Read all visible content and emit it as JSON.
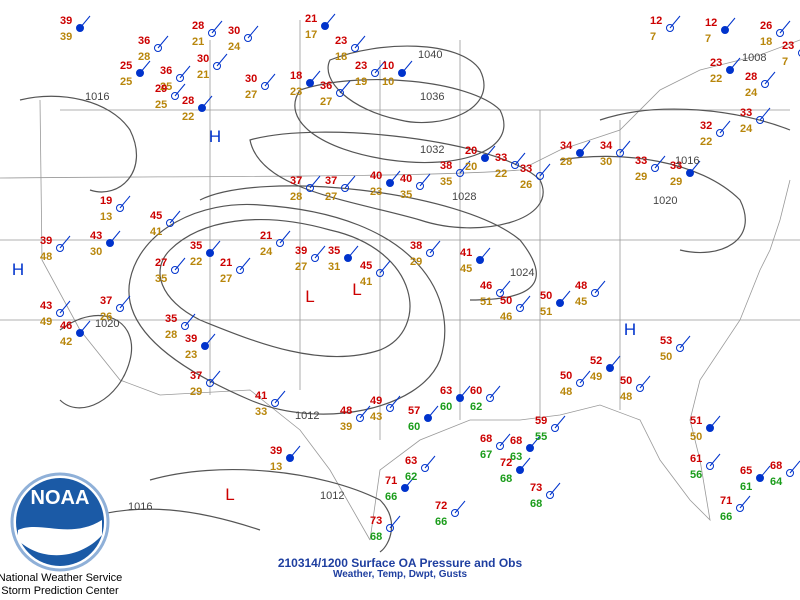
{
  "title": "210314/1200 Surface OA Pressure and Obs",
  "subtitle": "Weather, Temp, Dwpt, Gusts",
  "logo_text": "NOAA",
  "credits": [
    "National Weather Service",
    "Storm Prediction Center"
  ],
  "isobar_labels": [
    "1040",
    "1036",
    "1032",
    "1028",
    "1024",
    "1020",
    "1016",
    "1012",
    "1008",
    "1016",
    "1016",
    "1020",
    "1012"
  ],
  "centers": [
    "H",
    "H",
    "H",
    "L",
    "L",
    "L"
  ],
  "stations": [
    {
      "temp": 39,
      "dewpoint": 39
    },
    {
      "temp": 28,
      "dewpoint": 21
    },
    {
      "temp": 30,
      "dewpoint": 24
    },
    {
      "temp": 21,
      "dewpoint": 17
    },
    {
      "temp": 23,
      "dewpoint": 18
    },
    {
      "temp": 36,
      "dewpoint": 28
    },
    {
      "temp": 25,
      "dewpoint": 25
    },
    {
      "temp": 36,
      "dewpoint": 25
    },
    {
      "temp": 29,
      "dewpoint": 25
    },
    {
      "temp": 28,
      "dewpoint": 22
    },
    {
      "temp": 30,
      "dewpoint": 21
    },
    {
      "temp": 30,
      "dewpoint": 27
    },
    {
      "temp": 18,
      "dewpoint": 23
    },
    {
      "temp": 36,
      "dewpoint": 27
    },
    {
      "temp": 23,
      "dewpoint": 19
    },
    {
      "temp": 10,
      "dewpoint": 10
    },
    {
      "temp": 37,
      "dewpoint": 28
    },
    {
      "temp": 37,
      "dewpoint": 27
    },
    {
      "temp": 40,
      "dewpoint": 23
    },
    {
      "temp": 40,
      "dewpoint": 35
    },
    {
      "temp": 38,
      "dewpoint": 35
    },
    {
      "temp": 20,
      "dewpoint": 20
    },
    {
      "temp": 33,
      "dewpoint": 22
    },
    {
      "temp": 33,
      "dewpoint": 26
    },
    {
      "temp": 34,
      "dewpoint": 28
    },
    {
      "temp": 34,
      "dewpoint": 30
    },
    {
      "temp": 33,
      "dewpoint": 29
    },
    {
      "temp": 33,
      "dewpoint": 29
    },
    {
      "temp": 32,
      "dewpoint": 22
    },
    {
      "temp": 33,
      "dewpoint": 24
    },
    {
      "temp": 23,
      "dewpoint": 22
    },
    {
      "temp": 28,
      "dewpoint": 24
    },
    {
      "temp": 12,
      "dewpoint": 7
    },
    {
      "temp": 12,
      "dewpoint": 7
    },
    {
      "temp": 26,
      "dewpoint": 18
    },
    {
      "temp": 23,
      "dewpoint": 7
    },
    {
      "temp": 63,
      "dewpoint": 60
    },
    {
      "temp": 60,
      "dewpoint": 62
    },
    {
      "temp": 68,
      "dewpoint": 67
    },
    {
      "temp": 68,
      "dewpoint": 63
    },
    {
      "temp": 59,
      "dewpoint": 55
    },
    {
      "temp": 50,
      "dewpoint": 48
    },
    {
      "temp": 52,
      "dewpoint": 49
    },
    {
      "temp": 50,
      "dewpoint": 48
    },
    {
      "temp": 53,
      "dewpoint": 50
    },
    {
      "temp": 51,
      "dewpoint": 50
    },
    {
      "temp": 61,
      "dewpoint": 56
    },
    {
      "temp": 71,
      "dewpoint": 66
    },
    {
      "temp": 65,
      "dewpoint": 61
    },
    {
      "temp": 68,
      "dewpoint": 64
    },
    {
      "temp": 73,
      "dewpoint": 68
    },
    {
      "temp": 71,
      "dewpoint": 66
    },
    {
      "temp": 63,
      "dewpoint": 62
    },
    {
      "temp": 72,
      "dewpoint": 66
    },
    {
      "temp": 72,
      "dewpoint": 68
    },
    {
      "temp": 73,
      "dewpoint": 68
    },
    {
      "temp": 43,
      "dewpoint": 49
    },
    {
      "temp": 46,
      "dewpoint": 42
    },
    {
      "temp": 37,
      "dewpoint": 26
    },
    {
      "temp": 35,
      "dewpoint": 28
    },
    {
      "temp": 39,
      "dewpoint": 23
    },
    {
      "temp": 37,
      "dewpoint": 29
    },
    {
      "temp": 41,
      "dewpoint": 33
    },
    {
      "temp": 39,
      "dewpoint": 13
    },
    {
      "temp": 48,
      "dewpoint": 39
    },
    {
      "temp": 49,
      "dewpoint": 43
    },
    {
      "temp": 57,
      "dewpoint": 60
    },
    {
      "temp": 21,
      "dewpoint": 24
    },
    {
      "temp": 39,
      "dewpoint": 27
    },
    {
      "temp": 35,
      "dewpoint": 31
    },
    {
      "temp": 45,
      "dewpoint": 41
    },
    {
      "temp": 38,
      "dewpoint": 29
    },
    {
      "temp": 41,
      "dewpoint": 45
    },
    {
      "temp": 46,
      "dewpoint": 51
    },
    {
      "temp": 50,
      "dewpoint": 46
    },
    {
      "temp": 50,
      "dewpoint": 51
    },
    {
      "temp": 48,
      "dewpoint": 45
    },
    {
      "temp": 19,
      "dewpoint": 13
    },
    {
      "temp": 43,
      "dewpoint": 30
    },
    {
      "temp": 45,
      "dewpoint": 41
    },
    {
      "temp": 27,
      "dewpoint": 35
    },
    {
      "temp": 35,
      "dewpoint": 22
    },
    {
      "temp": 21,
      "dewpoint": 27
    },
    {
      "temp": 39,
      "dewpoint": 48
    }
  ]
}
